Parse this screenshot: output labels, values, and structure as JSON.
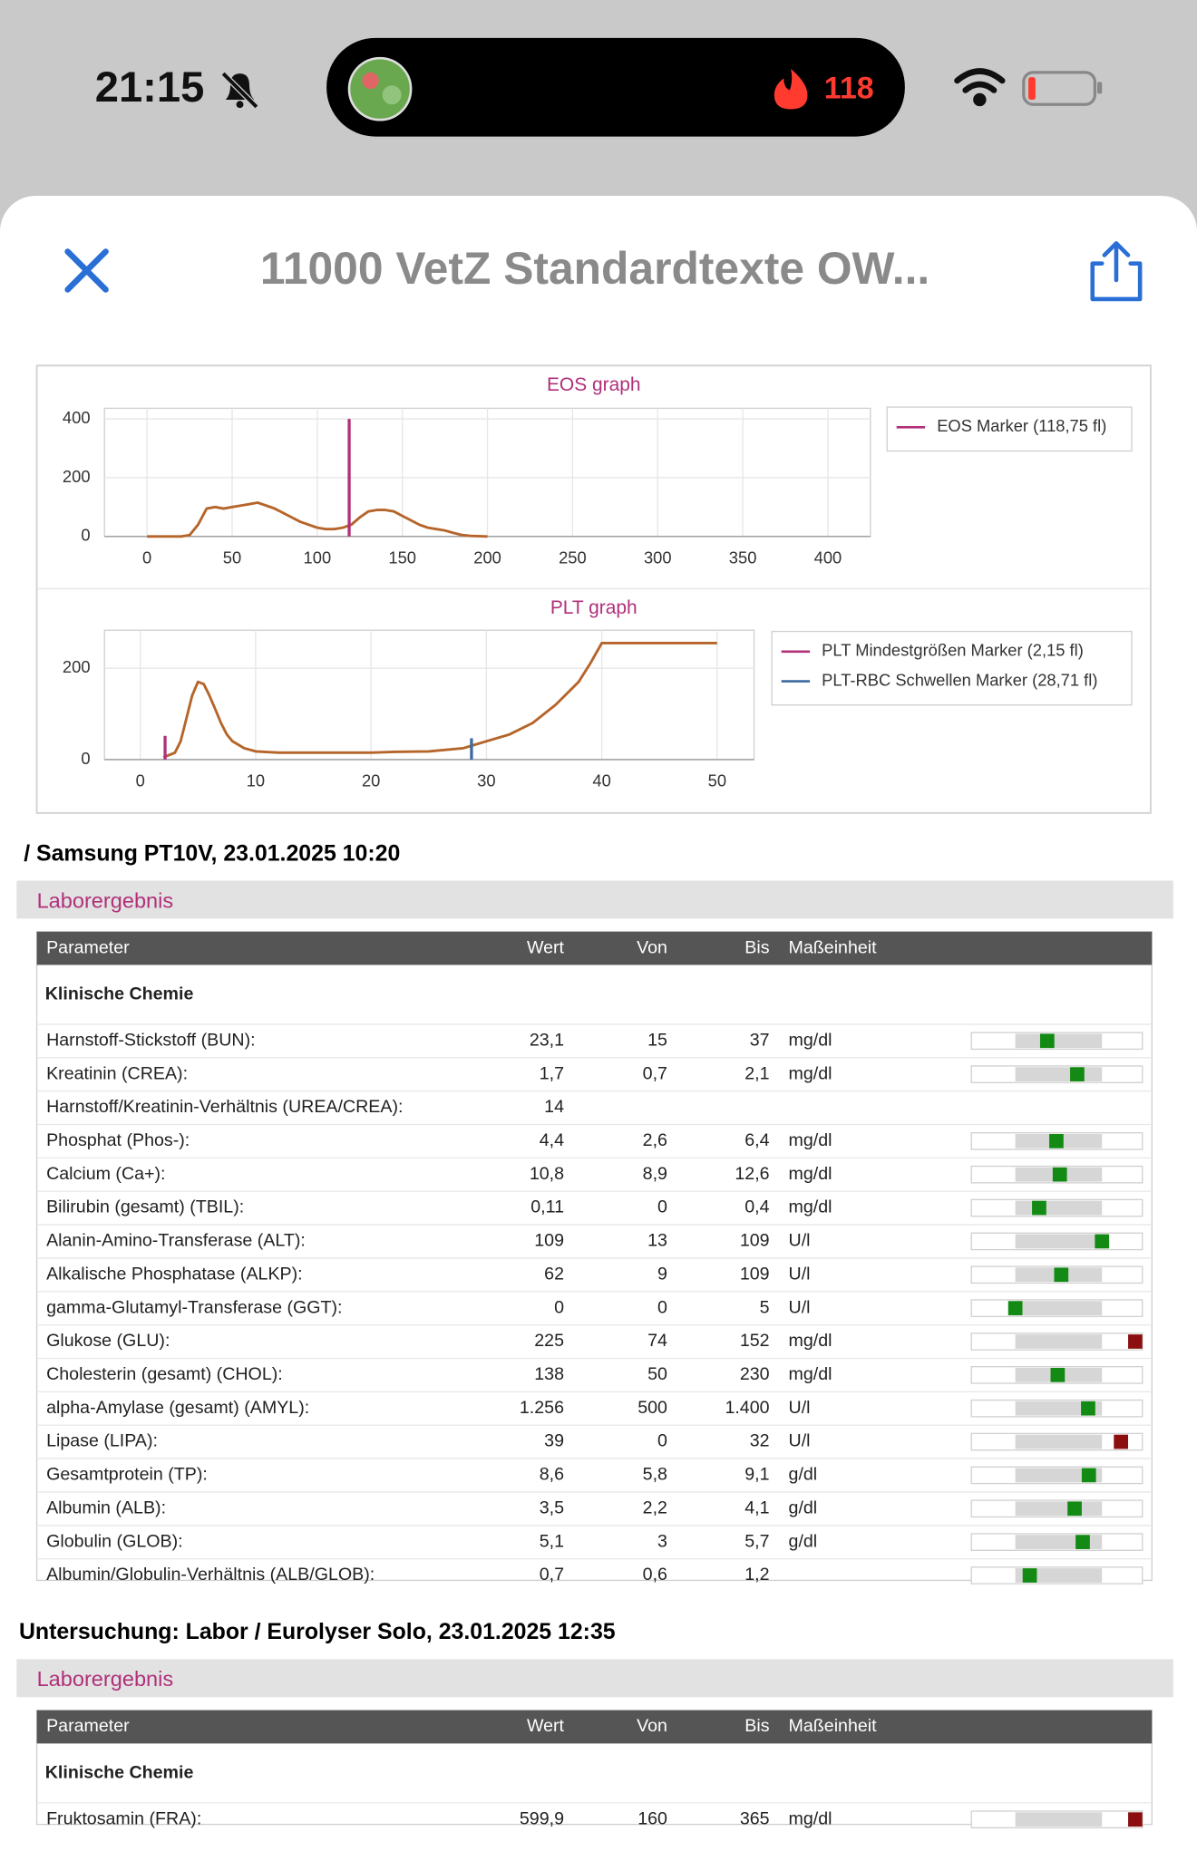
{
  "status_bar": {
    "time": "21:15",
    "activity_count": "118"
  },
  "header": {
    "title": "11000 VetZ Standardtexte OW..."
  },
  "graphs": [
    {
      "type": "line",
      "title": "EOS graph",
      "color": "#b5652a",
      "x": [
        0,
        20,
        25,
        30,
        35,
        40,
        45,
        50,
        55,
        60,
        65,
        70,
        75,
        80,
        85,
        90,
        95,
        100,
        105,
        110,
        115,
        120,
        125,
        130,
        135,
        140,
        145,
        150,
        155,
        160,
        165,
        170,
        175,
        180,
        185,
        190,
        200
      ],
      "values": [
        0,
        0,
        5,
        40,
        95,
        100,
        95,
        100,
        105,
        110,
        115,
        105,
        95,
        80,
        65,
        50,
        40,
        30,
        25,
        25,
        30,
        40,
        65,
        85,
        90,
        90,
        85,
        70,
        55,
        40,
        30,
        25,
        20,
        12,
        5,
        2,
        0
      ],
      "xlim": [
        -25,
        425
      ],
      "ylim": [
        0,
        436
      ],
      "xticks": [
        0,
        50,
        100,
        150,
        200,
        250,
        300,
        350,
        400
      ],
      "yticks": [
        0,
        200,
        400
      ],
      "grid": true,
      "markers": [
        {
          "name": "EOS Marker (118,75 fl)",
          "x": 118.75,
          "color": "#b0307a"
        }
      ]
    },
    {
      "type": "line",
      "title": "PLT graph",
      "color": "#b5652a",
      "x": [
        2,
        3,
        3.5,
        4,
        4.5,
        5,
        5.5,
        6,
        6.5,
        7,
        7.5,
        8,
        9,
        10,
        12,
        15,
        18,
        20,
        22,
        25,
        28,
        30,
        32,
        34,
        36,
        38,
        39,
        40,
        45,
        50
      ],
      "values": [
        5,
        15,
        40,
        90,
        140,
        170,
        165,
        140,
        110,
        80,
        55,
        40,
        25,
        18,
        15,
        15,
        15,
        15,
        17,
        18,
        25,
        40,
        55,
        80,
        120,
        170,
        210,
        255,
        255,
        255
      ],
      "xlim": [
        -3.1,
        53.2
      ],
      "ylim": [
        0,
        283
      ],
      "xticks": [
        0,
        10,
        20,
        30,
        40,
        50
      ],
      "yticks": [
        0,
        200
      ],
      "grid": true,
      "markers": [
        {
          "name": "PLT Mindestgrößen Marker (2,15 fl)",
          "x": 2.15,
          "color": "#b0307a"
        },
        {
          "name": "PLT-RBC Schwellen Marker (28,71 fl)",
          "x": 28.71,
          "color": "#3b6aa0"
        }
      ]
    }
  ],
  "sections": [
    {
      "heading": "/ Samsung PT10V, 23.01.2025 10:20",
      "label": "Laborergebnis",
      "columns": [
        "Parameter",
        "Wert",
        "Von",
        "Bis",
        "Maßeinheit"
      ],
      "group": "Klinische Chemie",
      "rows": [
        {
          "parameter": "Harnstoff-Stickstoff (BUN):",
          "wert": "23,1",
          "von": "15",
          "bis": "37",
          "unit": "mg/dl"
        },
        {
          "parameter": "Kreatinin (CREA):",
          "wert": "1,7",
          "von": "0,7",
          "bis": "2,1",
          "unit": "mg/dl"
        },
        {
          "parameter": "Harnstoff/Kreatinin-Verhältnis (UREA/CREA):",
          "wert": "14"
        },
        {
          "parameter": "Phosphat (Phos-):",
          "wert": "4,4",
          "von": "2,6",
          "bis": "6,4",
          "unit": "mg/dl"
        },
        {
          "parameter": "Calcium (Ca+):",
          "wert": "10,8",
          "von": "8,9",
          "bis": "12,6",
          "unit": "mg/dl"
        },
        {
          "parameter": "Bilirubin (gesamt) (TBIL):",
          "wert": "0,11",
          "von": "0",
          "bis": "0,4",
          "unit": "mg/dl"
        },
        {
          "parameter": "Alanin-Amino-Transferase (ALT):",
          "wert": "109",
          "von": "13",
          "bis": "109",
          "unit": "U/l"
        },
        {
          "parameter": "Alkalische Phosphatase (ALKP):",
          "wert": "62",
          "von": "9",
          "bis": "109",
          "unit": "U/l"
        },
        {
          "parameter": "gamma-Glutamyl-Transferase (GGT):",
          "wert": "0",
          "von": "0",
          "bis": "5",
          "unit": "U/l"
        },
        {
          "parameter": "Glukose (GLU):",
          "wert": "225",
          "von": "74",
          "bis": "152",
          "unit": "mg/dl"
        },
        {
          "parameter": "Cholesterin (gesamt) (CHOL):",
          "wert": "138",
          "von": "50",
          "bis": "230",
          "unit": "mg/dl"
        },
        {
          "parameter": "alpha-Amylase (gesamt) (AMYL):",
          "wert": "1.256",
          "von": "500",
          "bis": "1.400",
          "unit": "U/l"
        },
        {
          "parameter": "Lipase (LIPA):",
          "wert": "39",
          "von": "0",
          "bis": "32",
          "unit": "U/l"
        },
        {
          "parameter": "Gesamtprotein (TP):",
          "wert": "8,6",
          "von": "5,8",
          "bis": "9,1",
          "unit": "g/dl"
        },
        {
          "parameter": "Albumin (ALB):",
          "wert": "3,5",
          "von": "2,2",
          "bis": "4,1",
          "unit": "g/dl"
        },
        {
          "parameter": "Globulin (GLOB):",
          "wert": "5,1",
          "von": "3",
          "bis": "5,7",
          "unit": "g/dl"
        },
        {
          "parameter": "Albumin/Globulin-Verhältnis (ALB/GLOB):",
          "wert": "0,7",
          "von": "0,6",
          "bis": "1,2"
        }
      ]
    },
    {
      "heading": "Untersuchung: Labor / Eurolyser Solo, 23.01.2025 12:35",
      "label": "Laborergebnis",
      "columns": [
        "Parameter",
        "Wert",
        "Von",
        "Bis",
        "Maßeinheit"
      ],
      "group": "Klinische Chemie",
      "rows": [
        {
          "parameter": "Fruktosamin (FRA):",
          "wert": "599,9",
          "von": "160",
          "bis": "365",
          "unit": "mg/dl"
        }
      ]
    }
  ]
}
